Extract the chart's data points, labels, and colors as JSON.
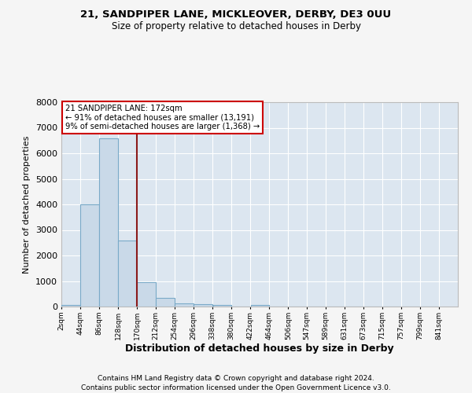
{
  "title": "21, SANDPIPER LANE, MICKLEOVER, DERBY, DE3 0UU",
  "subtitle": "Size of property relative to detached houses in Derby",
  "xlabel": "Distribution of detached houses by size in Derby",
  "ylabel": "Number of detached properties",
  "bar_left_edges": [
    2,
    44,
    86,
    128,
    170,
    212,
    254,
    296,
    338,
    380,
    422,
    464,
    506,
    547,
    589,
    631,
    673,
    715,
    757,
    799
  ],
  "bar_heights": [
    75,
    4000,
    6600,
    2600,
    950,
    325,
    125,
    100,
    55,
    0,
    75,
    0,
    0,
    0,
    0,
    0,
    0,
    0,
    0,
    0
  ],
  "bin_width": 42,
  "bar_color": "#c9d9e8",
  "bar_edge_color": "#7aaac8",
  "vline_x": 170,
  "vline_color": "#8b1a1a",
  "ylim": [
    0,
    8000
  ],
  "yticks": [
    0,
    1000,
    2000,
    3000,
    4000,
    5000,
    6000,
    7000,
    8000
  ],
  "xtick_labels": [
    "2sqm",
    "44sqm",
    "86sqm",
    "128sqm",
    "170sqm",
    "212sqm",
    "254sqm",
    "296sqm",
    "338sqm",
    "380sqm",
    "422sqm",
    "464sqm",
    "506sqm",
    "547sqm",
    "589sqm",
    "631sqm",
    "673sqm",
    "715sqm",
    "757sqm",
    "799sqm",
    "841sqm"
  ],
  "tick_positions": [
    2,
    44,
    86,
    128,
    170,
    212,
    254,
    296,
    338,
    380,
    422,
    464,
    506,
    547,
    589,
    631,
    673,
    715,
    757,
    799,
    841
  ],
  "annotation_text": "21 SANDPIPER LANE: 172sqm\n← 91% of detached houses are smaller (13,191)\n9% of semi-detached houses are larger (1,368) →",
  "annotation_box_color": "#ffffff",
  "annotation_box_edge_color": "#cc0000",
  "bg_color": "#dce6f0",
  "grid_color": "#ffffff",
  "fig_bg_color": "#f5f5f5",
  "footer_line1": "Contains HM Land Registry data © Crown copyright and database right 2024.",
  "footer_line2": "Contains public sector information licensed under the Open Government Licence v3.0."
}
